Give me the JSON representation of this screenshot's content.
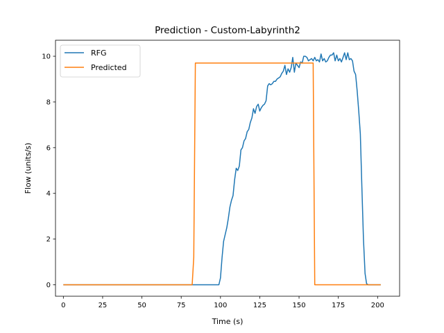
{
  "chart_data": {
    "type": "line",
    "title": "Prediction - Custom-Labyrinth2",
    "xlabel": "Time (s)",
    "ylabel": "Flow (units/s)",
    "xlim": [
      -5,
      214
    ],
    "ylim": [
      -0.5,
      10.7
    ],
    "xticks": [
      0,
      25,
      50,
      75,
      100,
      125,
      150,
      175,
      200
    ],
    "yticks": [
      0,
      2,
      4,
      6,
      8,
      10
    ],
    "grid": false,
    "legend_position": "top-left",
    "series": [
      {
        "name": "RFG",
        "color": "#1f77b4",
        "points": [
          [
            0,
            0
          ],
          [
            99,
            0
          ],
          [
            100,
            0.3
          ],
          [
            101,
            1.2
          ],
          [
            102,
            1.9
          ],
          [
            103,
            2.2
          ],
          [
            104,
            2.5
          ],
          [
            105,
            2.9
          ],
          [
            106,
            3.4
          ],
          [
            107,
            3.7
          ],
          [
            108,
            3.9
          ],
          [
            109,
            4.6
          ],
          [
            110,
            5.1
          ],
          [
            111,
            5.0
          ],
          [
            112,
            5.2
          ],
          [
            113,
            5.9
          ],
          [
            114,
            6.0
          ],
          [
            115,
            6.3
          ],
          [
            116,
            6.4
          ],
          [
            117,
            6.7
          ],
          [
            118,
            6.8
          ],
          [
            119,
            7.1
          ],
          [
            120,
            7.3
          ],
          [
            121,
            7.7
          ],
          [
            122,
            7.5
          ],
          [
            123,
            7.8
          ],
          [
            124,
            7.9
          ],
          [
            125,
            7.6
          ],
          [
            126,
            7.75
          ],
          [
            127,
            7.85
          ],
          [
            128,
            7.9
          ],
          [
            129,
            8.05
          ],
          [
            130,
            8.7
          ],
          [
            131,
            8.8
          ],
          [
            132,
            8.75
          ],
          [
            133,
            8.8
          ],
          [
            134,
            8.9
          ],
          [
            135,
            8.9
          ],
          [
            136,
            9.0
          ],
          [
            137,
            9.05
          ],
          [
            138,
            9.1
          ],
          [
            139,
            9.25
          ],
          [
            140,
            9.35
          ],
          [
            141,
            9.6
          ],
          [
            142,
            9.2
          ],
          [
            143,
            9.45
          ],
          [
            144,
            9.3
          ],
          [
            145,
            9.5
          ],
          [
            146,
            9.95
          ],
          [
            147,
            9.3
          ],
          [
            148,
            9.7
          ],
          [
            149,
            9.6
          ],
          [
            150,
            9.5
          ],
          [
            151,
            9.75
          ],
          [
            152,
            9.7
          ],
          [
            153,
            10.0
          ],
          [
            154,
            10.0
          ],
          [
            155,
            9.95
          ],
          [
            156,
            9.8
          ],
          [
            157,
            9.85
          ],
          [
            158,
            9.9
          ],
          [
            159,
            9.8
          ],
          [
            160,
            9.95
          ],
          [
            161,
            9.8
          ],
          [
            162,
            9.85
          ],
          [
            163,
            9.75
          ],
          [
            164,
            10.1
          ],
          [
            165,
            9.8
          ],
          [
            166,
            9.9
          ],
          [
            167,
            9.75
          ],
          [
            168,
            9.8
          ],
          [
            169,
            9.95
          ],
          [
            170,
            10.05
          ],
          [
            171,
            10.05
          ],
          [
            172,
            10.15
          ],
          [
            173,
            9.8
          ],
          [
            174,
            10.05
          ],
          [
            175,
            9.8
          ],
          [
            176,
            9.9
          ],
          [
            177,
            9.75
          ],
          [
            178,
            9.95
          ],
          [
            179,
            10.15
          ],
          [
            180,
            9.85
          ],
          [
            181,
            10.15
          ],
          [
            182,
            9.85
          ],
          [
            183,
            9.9
          ],
          [
            184,
            9.8
          ],
          [
            185,
            9.35
          ],
          [
            186,
            9.2
          ],
          [
            187,
            8.5
          ],
          [
            188,
            7.6
          ],
          [
            189,
            6.6
          ],
          [
            190,
            4.3
          ],
          [
            191,
            2.0
          ],
          [
            192,
            0.5
          ],
          [
            193,
            0.05
          ],
          [
            194,
            0
          ],
          [
            202,
            0
          ]
        ]
      },
      {
        "name": "Predicted",
        "color": "#ff7f0e",
        "points": [
          [
            0,
            0
          ],
          [
            82,
            0
          ],
          [
            83,
            1.2
          ],
          [
            84,
            9.7
          ],
          [
            158,
            9.7
          ],
          [
            159,
            9.7
          ],
          [
            160,
            0
          ],
          [
            202,
            0
          ]
        ]
      }
    ]
  }
}
